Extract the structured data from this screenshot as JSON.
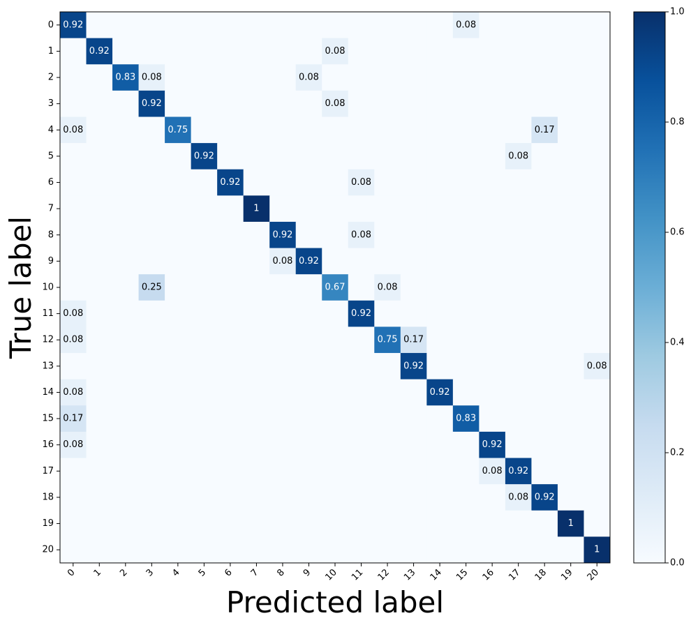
{
  "chart_data": {
    "type": "heatmap",
    "title": "",
    "xlabel": "Predicted label",
    "ylabel": "True label",
    "x_ticks": [
      "0",
      "1",
      "2",
      "3",
      "4",
      "5",
      "6",
      "7",
      "8",
      "9",
      "10",
      "11",
      "12",
      "13",
      "14",
      "15",
      "16",
      "17",
      "18",
      "19",
      "20"
    ],
    "y_ticks": [
      "0",
      "1",
      "2",
      "3",
      "4",
      "5",
      "6",
      "7",
      "8",
      "9",
      "10",
      "11",
      "12",
      "13",
      "14",
      "15",
      "16",
      "17",
      "18",
      "19",
      "20"
    ],
    "colormap": "Blues",
    "colorbar_ticks": [
      "0.0",
      "0.2",
      "0.4",
      "0.6",
      "0.8",
      "1.0"
    ],
    "value_range": [
      0,
      1
    ],
    "matrix": [
      [
        0.92,
        0,
        0,
        0,
        0,
        0,
        0,
        0,
        0,
        0,
        0,
        0,
        0,
        0,
        0,
        0.08,
        0,
        0,
        0,
        0,
        0
      ],
      [
        0,
        0.92,
        0,
        0,
        0,
        0,
        0,
        0,
        0,
        0,
        0.08,
        0,
        0,
        0,
        0,
        0,
        0,
        0,
        0,
        0,
        0
      ],
      [
        0,
        0,
        0.83,
        0.08,
        0,
        0,
        0,
        0,
        0,
        0.08,
        0,
        0,
        0,
        0,
        0,
        0,
        0,
        0,
        0,
        0,
        0
      ],
      [
        0,
        0,
        0,
        0.92,
        0,
        0,
        0,
        0,
        0,
        0,
        0.08,
        0,
        0,
        0,
        0,
        0,
        0,
        0,
        0,
        0,
        0
      ],
      [
        0.08,
        0,
        0,
        0,
        0.75,
        0,
        0,
        0,
        0,
        0,
        0,
        0,
        0,
        0,
        0,
        0,
        0,
        0,
        0.17,
        0,
        0
      ],
      [
        0,
        0,
        0,
        0,
        0,
        0.92,
        0,
        0,
        0,
        0,
        0,
        0,
        0,
        0,
        0,
        0,
        0,
        0.08,
        0,
        0,
        0
      ],
      [
        0,
        0,
        0,
        0,
        0,
        0,
        0.92,
        0,
        0,
        0,
        0,
        0.08,
        0,
        0,
        0,
        0,
        0,
        0,
        0,
        0,
        0
      ],
      [
        0,
        0,
        0,
        0,
        0,
        0,
        0,
        1.0,
        0,
        0,
        0,
        0,
        0,
        0,
        0,
        0,
        0,
        0,
        0,
        0,
        0
      ],
      [
        0,
        0,
        0,
        0,
        0,
        0,
        0,
        0,
        0.92,
        0,
        0,
        0.08,
        0,
        0,
        0,
        0,
        0,
        0,
        0,
        0,
        0
      ],
      [
        0,
        0,
        0,
        0,
        0,
        0,
        0,
        0,
        0.08,
        0.92,
        0,
        0,
        0,
        0,
        0,
        0,
        0,
        0,
        0,
        0,
        0
      ],
      [
        0,
        0,
        0,
        0.25,
        0,
        0,
        0,
        0,
        0,
        0,
        0.67,
        0,
        0.08,
        0,
        0,
        0,
        0,
        0,
        0,
        0,
        0
      ],
      [
        0.08,
        0,
        0,
        0,
        0,
        0,
        0,
        0,
        0,
        0,
        0,
        0.92,
        0,
        0,
        0,
        0,
        0,
        0,
        0,
        0,
        0
      ],
      [
        0.08,
        0,
        0,
        0,
        0,
        0,
        0,
        0,
        0,
        0,
        0,
        0,
        0.75,
        0.17,
        0,
        0,
        0,
        0,
        0,
        0,
        0
      ],
      [
        0,
        0,
        0,
        0,
        0,
        0,
        0,
        0,
        0,
        0,
        0,
        0,
        0,
        0.92,
        0,
        0,
        0,
        0,
        0,
        0,
        0.08
      ],
      [
        0.08,
        0,
        0,
        0,
        0,
        0,
        0,
        0,
        0,
        0,
        0,
        0,
        0,
        0,
        0.92,
        0,
        0,
        0,
        0,
        0,
        0
      ],
      [
        0.17,
        0,
        0,
        0,
        0,
        0,
        0,
        0,
        0,
        0,
        0,
        0,
        0,
        0,
        0,
        0.83,
        0,
        0,
        0,
        0,
        0
      ],
      [
        0.08,
        0,
        0,
        0,
        0,
        0,
        0,
        0,
        0,
        0,
        0,
        0,
        0,
        0,
        0,
        0,
        0.92,
        0,
        0,
        0,
        0
      ],
      [
        0,
        0,
        0,
        0,
        0,
        0,
        0,
        0,
        0,
        0,
        0,
        0,
        0,
        0,
        0,
        0,
        0.08,
        0.92,
        0,
        0,
        0
      ],
      [
        0,
        0,
        0,
        0,
        0,
        0,
        0,
        0,
        0,
        0,
        0,
        0,
        0,
        0,
        0,
        0,
        0,
        0.08,
        0.92,
        0,
        0
      ],
      [
        0,
        0,
        0,
        0,
        0,
        0,
        0,
        0,
        0,
        0,
        0,
        0,
        0,
        0,
        0,
        0,
        0,
        0,
        0,
        1.0,
        0
      ],
      [
        0,
        0,
        0,
        0,
        0,
        0,
        0,
        0,
        0,
        0,
        0,
        0,
        0,
        0,
        0,
        0,
        0,
        0,
        0,
        0,
        1.0
      ]
    ]
  }
}
